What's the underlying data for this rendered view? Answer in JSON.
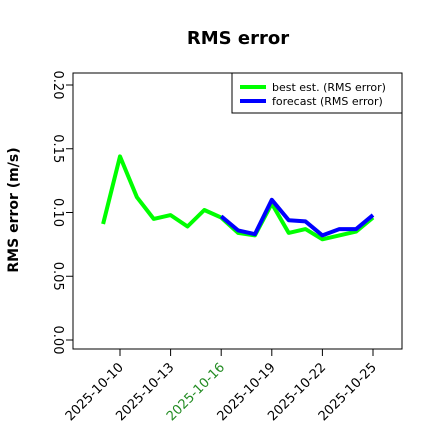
{
  "chart_data": {
    "type": "line",
    "title": "RMS error",
    "xlabel": "",
    "ylabel": "RMS error (m/s)",
    "ylim": [
      0,
      0.21
    ],
    "y_ticks": [
      0.0,
      0.05,
      0.1,
      0.15,
      0.2
    ],
    "y_tick_labels": [
      "0.00",
      "0.05",
      "0.10",
      "0.15",
      "0.20"
    ],
    "x_ticks": [
      "2025-10-10",
      "2025-10-13",
      "2025-10-16",
      "2025-10-19",
      "2025-10-22",
      "2025-10-25"
    ],
    "highlighted_tick": "2025-10-16",
    "highlight_color": "#228B22",
    "grid": false,
    "legend_position": "top-right",
    "series": [
      {
        "name": "best est. (RMS error)",
        "color": "#00ff00",
        "x": [
          "2025-10-09",
          "2025-10-10",
          "2025-10-11",
          "2025-10-12",
          "2025-10-13",
          "2025-10-14",
          "2025-10-15",
          "2025-10-16",
          "2025-10-17",
          "2025-10-18",
          "2025-10-19",
          "2025-10-20",
          "2025-10-21",
          "2025-10-22",
          "2025-10-23",
          "2025-10-24",
          "2025-10-25"
        ],
        "values": [
          0.091,
          0.144,
          0.112,
          0.095,
          0.098,
          0.089,
          0.102,
          0.096,
          0.084,
          0.082,
          0.107,
          0.084,
          0.087,
          0.079,
          0.082,
          0.085,
          0.096
        ]
      },
      {
        "name": "forecast (RMS error)",
        "color": "#0000ff",
        "x": [
          "2025-10-16",
          "2025-10-17",
          "2025-10-18",
          "2025-10-19",
          "2025-10-20",
          "2025-10-21",
          "2025-10-22",
          "2025-10-23",
          "2025-10-24",
          "2025-10-25"
        ],
        "values": [
          0.097,
          0.086,
          0.083,
          0.11,
          0.094,
          0.093,
          0.082,
          0.087,
          0.087,
          0.098
        ]
      }
    ]
  }
}
